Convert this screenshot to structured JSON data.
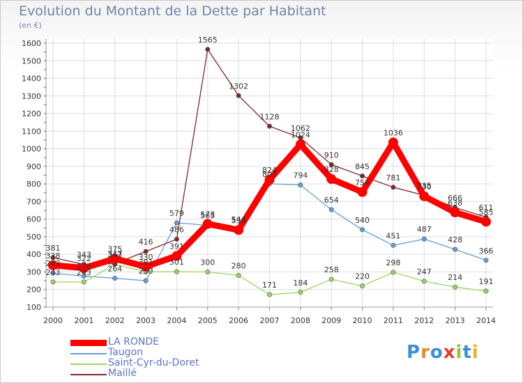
{
  "title": "Evolution du Montant de la Dette par Habitant",
  "subtitle": "(en €)",
  "brand": "Proxiti",
  "chart_data": {
    "type": "line",
    "x": [
      "2000",
      "2001",
      "2002",
      "2003",
      "2004",
      "2005",
      "2006",
      "2007",
      "2008",
      "2009",
      "2010",
      "2011",
      "2012",
      "2013",
      "2014"
    ],
    "yticks": [
      100,
      200,
      300,
      400,
      500,
      600,
      700,
      800,
      900,
      1000,
      1100,
      1200,
      1300,
      1400,
      1500,
      1600
    ],
    "ylim": [
      100,
      1600
    ],
    "grid": true,
    "legend_position": "bottom-left",
    "series": [
      {
        "name": "LA RONDE",
        "color": "#ff0000",
        "values": [
          338,
          322,
          375,
          330,
          391,
          573,
          538,
          824,
          1024,
          828,
          754,
          1036,
          730,
          638,
          585
        ]
      },
      {
        "name": "Taugon",
        "color": "#5f9fd8",
        "values": [
          293,
          276,
          264,
          250,
          579,
          565,
          544,
          801,
          794,
          654,
          540,
          451,
          487,
          428,
          366
        ]
      },
      {
        "name": "Saint-Cyr-du-Doret",
        "color": "#9ad460",
        "values": [
          243,
          243,
          343,
          301,
          301,
          300,
          280,
          171,
          184,
          258,
          220,
          298,
          247,
          214,
          191
        ]
      },
      {
        "name": "Maillé",
        "color": "#7a2a2a",
        "values": [
          381,
          343,
          347,
          416,
          486,
          1565,
          1302,
          1128,
          1062,
          910,
          845,
          781,
          735,
          666,
          611
        ]
      }
    ]
  }
}
